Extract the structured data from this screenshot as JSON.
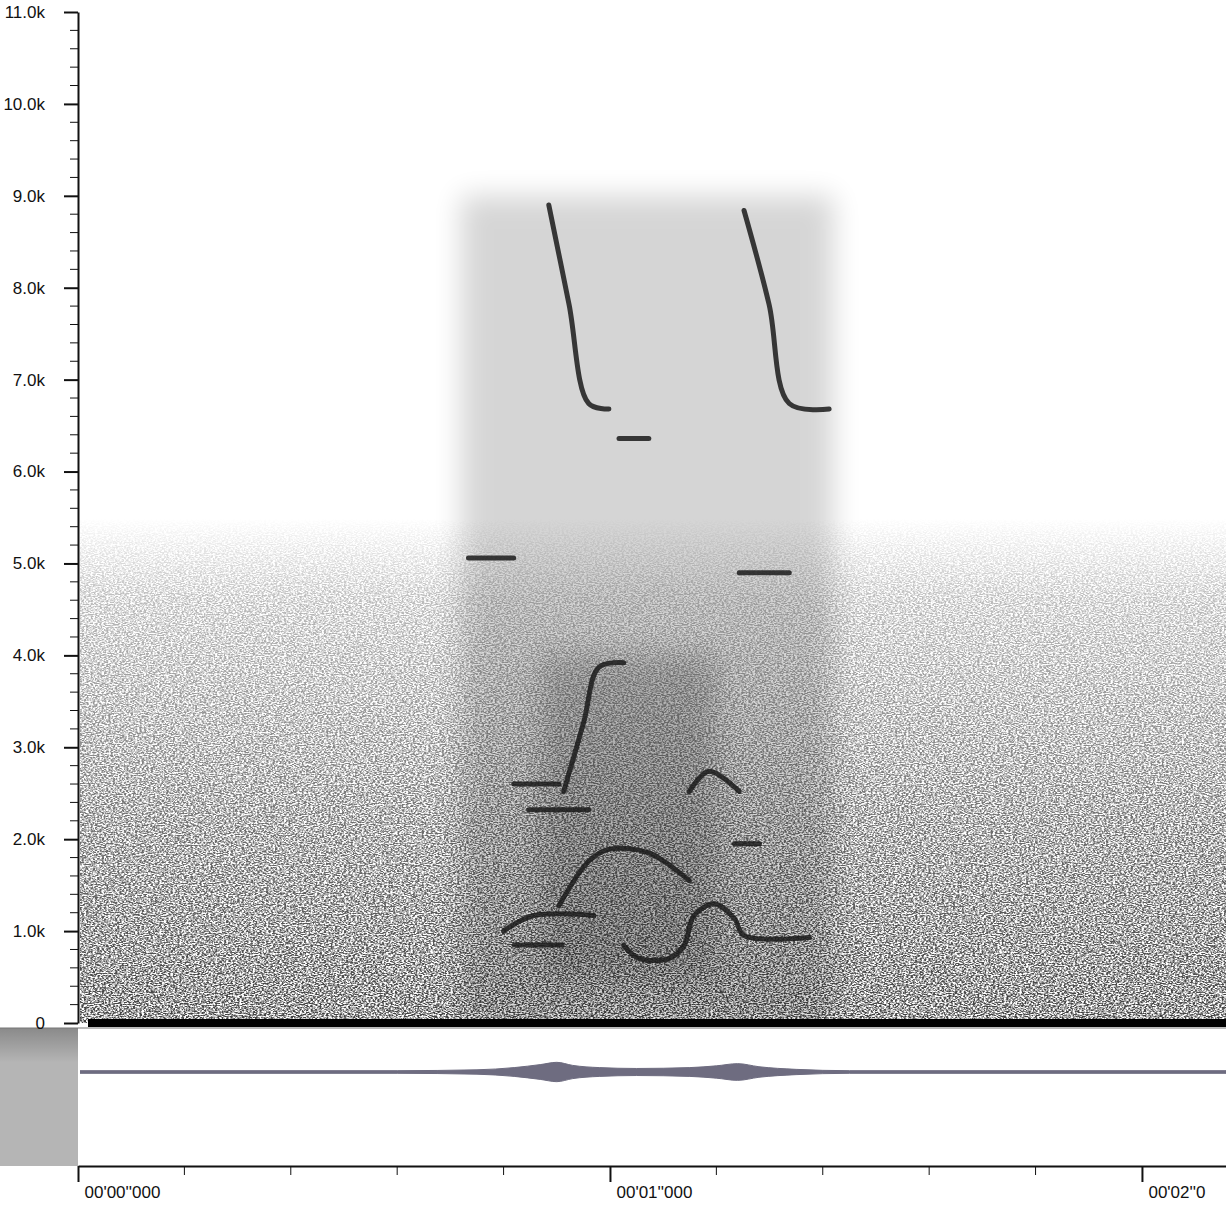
{
  "chart_data": {
    "type": "spectrogram",
    "color": "#1a1a1a",
    "xlim": [
      0,
      2.158
    ],
    "xticks": [
      {
        "value": 0,
        "label": "00'00''000"
      },
      {
        "value": 1,
        "label": "00'01''000"
      },
      {
        "value": 2,
        "label": "00'02''0"
      }
    ],
    "xticks_minor": [
      0.2,
      0.4,
      0.6,
      0.8,
      1.2,
      1.4,
      1.6,
      1.8
    ],
    "ylim": [
      0,
      11000
    ],
    "yticks": [
      0,
      {
        "value": 1000,
        "label": "1.0k"
      },
      {
        "value": 2000,
        "label": "2.0k"
      },
      {
        "value": 3000,
        "label": "3.0k"
      },
      {
        "value": 4000,
        "label": "4.0k"
      },
      {
        "value": 5000,
        "label": "5.0k"
      },
      {
        "value": 6000,
        "label": "6.0k"
      },
      {
        "value": 7000,
        "label": "7.0k"
      },
      {
        "value": 8000,
        "label": "8.0k"
      },
      {
        "value": 9000,
        "label": "9.0k"
      },
      {
        "value": 10000,
        "label": "10.0k"
      },
      {
        "value": 11000,
        "label": "11.0k"
      }
    ],
    "yticks_minor": [
      200,
      400,
      600,
      800,
      1200,
      1400,
      1600,
      1800,
      2200,
      2400,
      2600,
      2800,
      3200,
      3400,
      3600,
      3800,
      4200,
      4400,
      4600,
      4800,
      5200,
      5400,
      5600,
      5800,
      6200,
      6400,
      6600,
      6800,
      7200,
      7400,
      7600,
      7800,
      8200,
      8400,
      8600,
      8800,
      9200,
      9400,
      9600,
      9800,
      10200,
      10400,
      10600,
      10800
    ],
    "energy_regions": [
      {
        "x": [
          0.72,
          1.42
        ],
        "y": [
          0,
          9000
        ]
      },
      {
        "x": [
          0.87,
          1.2
        ],
        "y": [
          500,
          4000
        ]
      }
    ],
    "traces": [
      {
        "x": [
          0.8,
          0.857,
          0.97
        ],
        "y": [
          1000,
          1170,
          1170
        ]
      },
      {
        "x": [
          0.82,
          0.91
        ],
        "y": [
          850,
          850
        ]
      },
      {
        "x": [
          0.904,
          0.96,
          0.998,
          1.073,
          1.149
        ],
        "y": [
          1275,
          1760,
          1890,
          1850,
          1550
        ]
      },
      {
        "x": [
          1.026,
          1.055,
          1.111,
          1.139,
          1.158,
          1.196,
          1.234,
          1.252,
          1.375
        ],
        "y": [
          843,
          703,
          703,
          843,
          1168,
          1297,
          1135,
          951,
          930
        ]
      },
      {
        "x": [
          0.847,
          0.96
        ],
        "y": [
          2320,
          2320
        ]
      },
      {
        "x": [
          0.819,
          0.904
        ],
        "y": [
          2600,
          2600
        ]
      },
      {
        "x": [
          0.913,
          0.951,
          0.979,
          1.026
        ],
        "y": [
          2520,
          3280,
          3870,
          3920
        ]
      },
      {
        "x": [
          0.885,
          0.923,
          0.96,
          0.998
        ],
        "y": [
          8900,
          7820,
          6740,
          6680
        ]
      },
      {
        "x": [
          1.252,
          1.299,
          1.337,
          1.412
        ],
        "y": [
          8840,
          7820,
          6740,
          6680
        ]
      },
      {
        "x": [
          0.734,
          0.819
        ],
        "y": [
          5060,
          5060
        ]
      },
      {
        "x": [
          1.243,
          1.337
        ],
        "y": [
          4900,
          4900
        ]
      },
      {
        "x": [
          1.234,
          1.281
        ],
        "y": [
          1950,
          1950
        ]
      },
      {
        "x": [
          1.149,
          1.186,
          1.243
        ],
        "y": [
          2520,
          2740,
          2520
        ]
      },
      {
        "x": [
          1.017,
          1.073
        ],
        "y": [
          6360,
          6360
        ]
      }
    ],
    "waveform": {
      "ylim": [
        -1,
        1
      ],
      "x": [
        0,
        0.6,
        0.75,
        0.82,
        0.87,
        0.9,
        0.93,
        0.98,
        1.05,
        1.15,
        1.2,
        1.24,
        1.28,
        1.35,
        1.45,
        2.158
      ],
      "values": [
        0.03,
        0.03,
        0.05,
        0.1,
        0.17,
        0.22,
        0.15,
        0.1,
        0.08,
        0.1,
        0.14,
        0.19,
        0.12,
        0.06,
        0.03,
        0.03
      ]
    }
  }
}
